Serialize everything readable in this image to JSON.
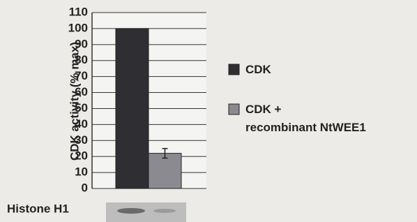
{
  "chart_data": {
    "type": "bar",
    "ylabel": "CDK activity (% max)",
    "categories": [
      null
    ],
    "series": [
      {
        "name": "CDK",
        "color": "#2f2f33",
        "values": [
          100
        ]
      },
      {
        "name": "CDK +\nrecombinant NtWEE1",
        "color": "#8a8a90",
        "values": [
          22
        ],
        "errors": [
          3
        ]
      }
    ],
    "ylim": [
      0,
      110
    ],
    "yticks": [
      0,
      10,
      20,
      30,
      40,
      50,
      60,
      70,
      80,
      90,
      100,
      110
    ],
    "grid": true,
    "blot_label": "Histone H1"
  }
}
